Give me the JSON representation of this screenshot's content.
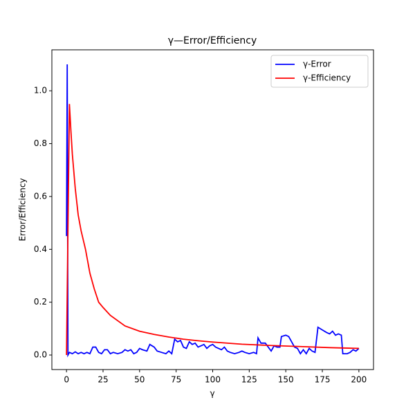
{
  "chart_data": {
    "type": "line",
    "title": "γ—Error/Efficiency",
    "xlabel": "γ",
    "ylabel": "Error/Efficiency",
    "xlim": [
      -10,
      210
    ],
    "xticks": [
      0,
      25,
      50,
      75,
      100,
      125,
      150,
      175,
      200
    ],
    "ylim": [
      -0.055,
      1.155
    ],
    "yticks": [
      {
        "value": 0,
        "label": "0.0"
      },
      0.2,
      0.4,
      0.6,
      0.8,
      {
        "value": 1,
        "label": "1.0"
      }
    ],
    "grid": false,
    "legend": "upper right",
    "series": [
      {
        "name": "γ-Error",
        "color": "#0000ff",
        "x": [
          0,
          0.5,
          1,
          2,
          4,
          6,
          8,
          10,
          12,
          14,
          16,
          18,
          20,
          22,
          24,
          26,
          28,
          30,
          32,
          35,
          38,
          40,
          42,
          44,
          46,
          48,
          50,
          52,
          55,
          57,
          60,
          62,
          65,
          68,
          70,
          72,
          74,
          76,
          78,
          80,
          82,
          84,
          86,
          88,
          90,
          92,
          94,
          96,
          98,
          100,
          102,
          104,
          106,
          108,
          110,
          112,
          115,
          118,
          120,
          122,
          125,
          128,
          130,
          131,
          133,
          136,
          138,
          140,
          142,
          144,
          146,
          147,
          150,
          152,
          154,
          156,
          158,
          160,
          162,
          164,
          166,
          168,
          170,
          172,
          175,
          178,
          180,
          182,
          184,
          186,
          188,
          189,
          192,
          194,
          196,
          198,
          200
        ],
        "values": [
          0.45,
          1.1,
          0.0,
          0.01,
          0.005,
          0.012,
          0.005,
          0.01,
          0.005,
          0.01,
          0.005,
          0.03,
          0.03,
          0.01,
          0.005,
          0.02,
          0.02,
          0.005,
          0.01,
          0.005,
          0.01,
          0.02,
          0.015,
          0.02,
          0.005,
          0.01,
          0.025,
          0.02,
          0.015,
          0.04,
          0.03,
          0.015,
          0.01,
          0.005,
          0.015,
          0.005,
          0.06,
          0.05,
          0.055,
          0.03,
          0.025,
          0.05,
          0.04,
          0.045,
          0.03,
          0.035,
          0.04,
          0.025,
          0.035,
          0.04,
          0.03,
          0.025,
          0.02,
          0.03,
          0.015,
          0.01,
          0.005,
          0.01,
          0.015,
          0.01,
          0.005,
          0.01,
          0.005,
          0.065,
          0.045,
          0.045,
          0.03,
          0.015,
          0.035,
          0.03,
          0.03,
          0.07,
          0.075,
          0.07,
          0.05,
          0.03,
          0.025,
          0.005,
          0.02,
          0.005,
          0.025,
          0.015,
          0.01,
          0.105,
          0.095,
          0.085,
          0.08,
          0.09,
          0.075,
          0.08,
          0.075,
          0.005,
          0.005,
          0.01,
          0.02,
          0.015,
          0.025
        ]
      },
      {
        "name": "γ-Efficiency",
        "color": "#ff0000",
        "x": [
          0,
          2,
          3,
          4,
          6,
          8,
          10,
          13,
          16,
          19,
          22,
          25,
          30,
          40,
          50,
          60,
          70,
          80,
          90,
          100,
          120,
          140,
          160,
          180,
          200
        ],
        "values": [
          0,
          0.95,
          0.85,
          0.76,
          0.63,
          0.53,
          0.47,
          0.4,
          0.31,
          0.25,
          0.2,
          0.18,
          0.15,
          0.11,
          0.09,
          0.078,
          0.068,
          0.06,
          0.054,
          0.049,
          0.041,
          0.036,
          0.032,
          0.028,
          0.025
        ]
      }
    ]
  }
}
